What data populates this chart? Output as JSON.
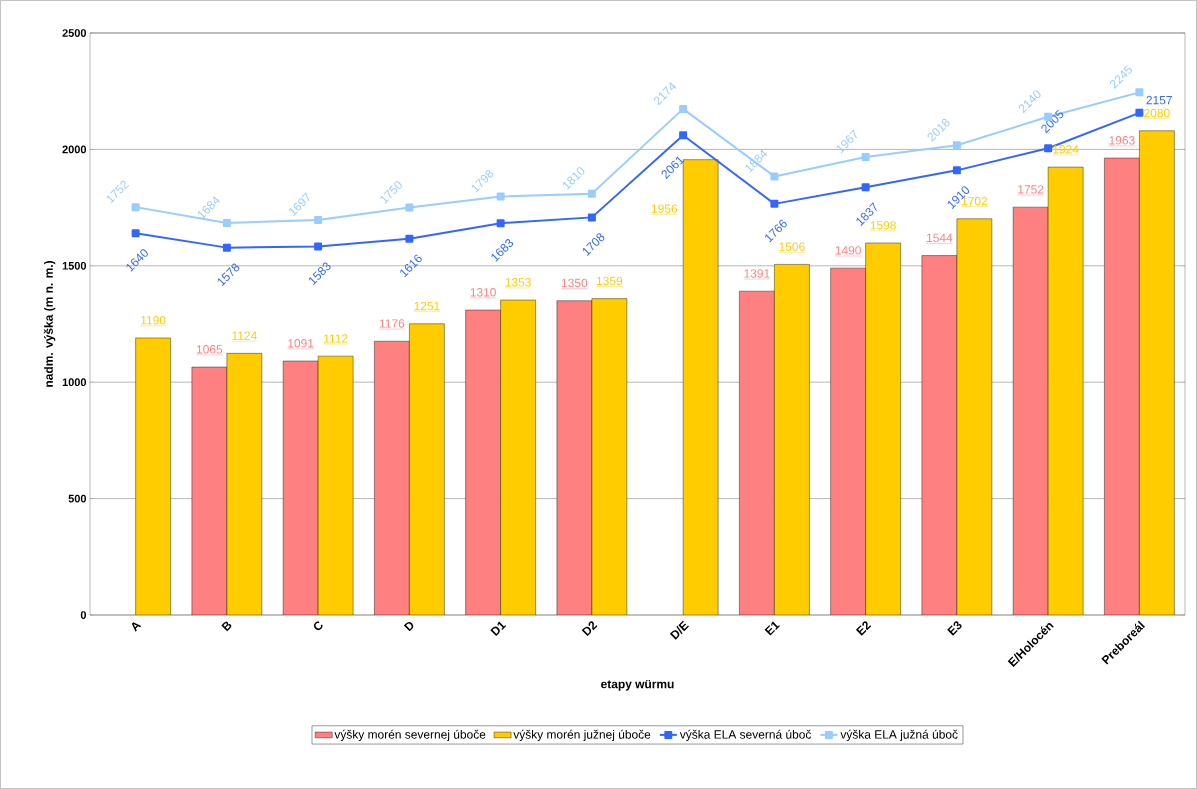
{
  "chart_data": {
    "type": "bar",
    "xlabel": "etapy würmu",
    "ylabel": "nadm. výška (m n. m.)",
    "categories": [
      "A",
      "B",
      "C",
      "D",
      "D1",
      "D2",
      "D/E",
      "E1",
      "E2",
      "E3",
      "E/Holocén",
      "Preboreál"
    ],
    "series": [
      {
        "name": "výšky morén severnej úboče",
        "type": "bar",
        "color": "#ff8080",
        "values": [
          null,
          1065,
          1091,
          1176,
          1310,
          1350,
          null,
          1391,
          1490,
          1544,
          1752,
          1963
        ]
      },
      {
        "name": "výšky morén južnej úboče",
        "type": "bar",
        "color": "#ffcc00",
        "values": [
          1190,
          1124,
          1112,
          1251,
          1353,
          1359,
          1956,
          1506,
          1598,
          1702,
          1924,
          2080
        ]
      },
      {
        "name": "výška ELA severná úboč",
        "type": "line",
        "color": "#3366ff",
        "values": [
          1640,
          1578,
          1583,
          1616,
          1683,
          1708,
          2061,
          1766,
          1837,
          1910,
          2005,
          2157
        ]
      },
      {
        "name": "výška ELA južná úboč",
        "type": "line",
        "color": "#99ccff",
        "values": [
          1752,
          1684,
          1697,
          1750,
          1798,
          1810,
          2174,
          1884,
          1967,
          2018,
          2140,
          2245
        ]
      }
    ],
    "ylim": [
      0,
      2500
    ],
    "yticks": [
      0,
      500,
      1000,
      1500,
      2000,
      2500
    ],
    "grid": "y",
    "legend": "bottom",
    "marker": "square",
    "data_labels": true
  }
}
